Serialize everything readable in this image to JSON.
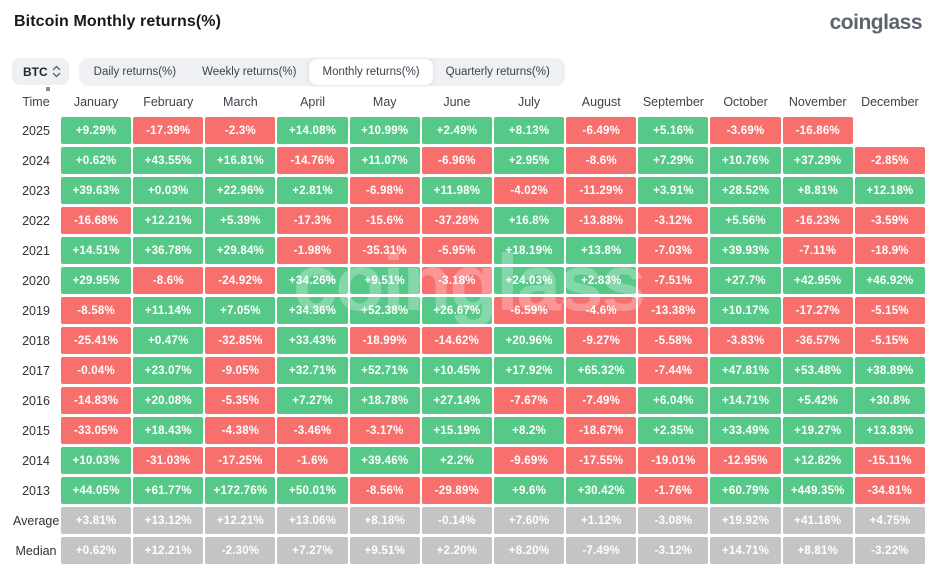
{
  "page": {
    "title": "Bitcoin Monthly returns(%)",
    "brand": "coinglass",
    "watermark": "coinglass"
  },
  "theme": {
    "positive_green": "#56c989",
    "negative_red": "#f7706e",
    "summary_gray": "#c4c4c6",
    "bar_bg": "#eef0f3",
    "active_tab_bg": "#ffffff"
  },
  "controls": {
    "coin_selector_label": "BTC",
    "tabs": [
      {
        "label": "Daily returns(%)",
        "active": false
      },
      {
        "label": "Weekly returns(%)",
        "active": false
      },
      {
        "label": "Monthly returns(%)",
        "active": true
      },
      {
        "label": "Quarterly returns(%)",
        "active": false
      }
    ]
  },
  "table": {
    "time_header": "Time",
    "months": [
      "January",
      "February",
      "March",
      "April",
      "May",
      "June",
      "July",
      "August",
      "September",
      "October",
      "November",
      "December"
    ],
    "rows": [
      {
        "label": "2025",
        "type": "year",
        "values": [
          "+9.29%",
          "-17.39%",
          "-2.3%",
          "+14.08%",
          "+10.99%",
          "+2.49%",
          "+8.13%",
          "-6.49%",
          "+5.16%",
          "-3.69%",
          "-16.86%",
          ""
        ]
      },
      {
        "label": "2024",
        "type": "year",
        "values": [
          "+0.62%",
          "+43.55%",
          "+16.81%",
          "-14.76%",
          "+11.07%",
          "-6.96%",
          "+2.95%",
          "-8.6%",
          "+7.29%",
          "+10.76%",
          "+37.29%",
          "-2.85%"
        ]
      },
      {
        "label": "2023",
        "type": "year",
        "values": [
          "+39.63%",
          "+0.03%",
          "+22.96%",
          "+2.81%",
          "-6.98%",
          "+11.98%",
          "-4.02%",
          "-11.29%",
          "+3.91%",
          "+28.52%",
          "+8.81%",
          "+12.18%"
        ]
      },
      {
        "label": "2022",
        "type": "year",
        "values": [
          "-16.68%",
          "+12.21%",
          "+5.39%",
          "-17.3%",
          "-15.6%",
          "-37.28%",
          "+16.8%",
          "-13.88%",
          "-3.12%",
          "+5.56%",
          "-16.23%",
          "-3.59%"
        ]
      },
      {
        "label": "2021",
        "type": "year",
        "values": [
          "+14.51%",
          "+36.78%",
          "+29.84%",
          "-1.98%",
          "-35.31%",
          "-5.95%",
          "+18.19%",
          "+13.8%",
          "-7.03%",
          "+39.93%",
          "-7.11%",
          "-18.9%"
        ]
      },
      {
        "label": "2020",
        "type": "year",
        "values": [
          "+29.95%",
          "-8.6%",
          "-24.92%",
          "+34.26%",
          "+9.51%",
          "-3.18%",
          "+24.03%",
          "+2.83%",
          "-7.51%",
          "+27.7%",
          "+42.95%",
          "+46.92%"
        ]
      },
      {
        "label": "2019",
        "type": "year",
        "values": [
          "-8.58%",
          "+11.14%",
          "+7.05%",
          "+34.36%",
          "+52.38%",
          "+26.67%",
          "-6.59%",
          "-4.6%",
          "-13.38%",
          "+10.17%",
          "-17.27%",
          "-5.15%"
        ]
      },
      {
        "label": "2018",
        "type": "year",
        "values": [
          "-25.41%",
          "+0.47%",
          "-32.85%",
          "+33.43%",
          "-18.99%",
          "-14.62%",
          "+20.96%",
          "-9.27%",
          "-5.58%",
          "-3.83%",
          "-36.57%",
          "-5.15%"
        ]
      },
      {
        "label": "2017",
        "type": "year",
        "values": [
          "-0.04%",
          "+23.07%",
          "-9.05%",
          "+32.71%",
          "+52.71%",
          "+10.45%",
          "+17.92%",
          "+65.32%",
          "-7.44%",
          "+47.81%",
          "+53.48%",
          "+38.89%"
        ]
      },
      {
        "label": "2016",
        "type": "year",
        "values": [
          "-14.83%",
          "+20.08%",
          "-5.35%",
          "+7.27%",
          "+18.78%",
          "+27.14%",
          "-7.67%",
          "-7.49%",
          "+6.04%",
          "+14.71%",
          "+5.42%",
          "+30.8%"
        ]
      },
      {
        "label": "2015",
        "type": "year",
        "values": [
          "-33.05%",
          "+18.43%",
          "-4.38%",
          "-3.46%",
          "-3.17%",
          "+15.19%",
          "+8.2%",
          "-18.67%",
          "+2.35%",
          "+33.49%",
          "+19.27%",
          "+13.83%"
        ]
      },
      {
        "label": "2014",
        "type": "year",
        "values": [
          "+10.03%",
          "-31.03%",
          "-17.25%",
          "-1.6%",
          "+39.46%",
          "+2.2%",
          "-9.69%",
          "-17.55%",
          "-19.01%",
          "-12.95%",
          "+12.82%",
          "-15.11%"
        ]
      },
      {
        "label": "2013",
        "type": "year",
        "values": [
          "+44.05%",
          "+61.77%",
          "+172.76%",
          "+50.01%",
          "-8.56%",
          "-29.89%",
          "+9.6%",
          "+30.42%",
          "-1.76%",
          "+60.79%",
          "+449.35%",
          "-34.81%"
        ]
      },
      {
        "label": "Average",
        "type": "summary",
        "values": [
          "+3.81%",
          "+13.12%",
          "+12.21%",
          "+13.06%",
          "+8.18%",
          "-0.14%",
          "+7.60%",
          "+1.12%",
          "-3.08%",
          "+19.92%",
          "+41.18%",
          "+4.75%"
        ]
      },
      {
        "label": "Median",
        "type": "summary",
        "values": [
          "+0.62%",
          "+12.21%",
          "-2.30%",
          "+7.27%",
          "+9.51%",
          "+2.20%",
          "+8.20%",
          "-7.49%",
          "-3.12%",
          "+14.71%",
          "+8.81%",
          "-3.22%"
        ]
      }
    ]
  }
}
